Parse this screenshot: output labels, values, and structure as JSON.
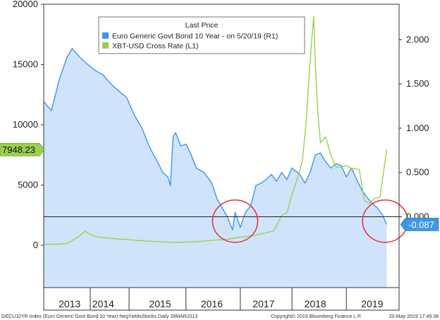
{
  "chart_data": {
    "type": "line",
    "legend": {
      "title": "Last Price",
      "placement": "top-center",
      "entries": [
        {
          "label": "Euro Generic Govt Bond 10 Year -  on 5/20/19  (R1)",
          "color": "#3c97e6"
        },
        {
          "label": "XBT-USD Cross Rate  (L1)",
          "color": "#9ad14d"
        }
      ]
    },
    "x_axis": {
      "range": [
        2012.75,
        2019.62
      ],
      "ticks": [
        "2013",
        "2014",
        "2015",
        "2016",
        "2017",
        "2018",
        "2019"
      ],
      "tick_positions": [
        2013.25,
        2013.9,
        2015.0,
        2016.0,
        2017.0,
        2018.0,
        2019.1
      ]
    },
    "y_left": {
      "range": [
        -3500,
        20000
      ],
      "tick_labels": [
        "20000",
        "15000",
        "10000",
        "5000",
        "0"
      ],
      "tick_values": [
        20000,
        15000,
        10000,
        5000,
        0
      ]
    },
    "y_right": {
      "range": [
        -0.8,
        2.4
      ],
      "tick_labels": [
        "2.000",
        "1.500",
        "1.000",
        "0.500",
        "0.000"
      ],
      "tick_values": [
        2.0,
        1.5,
        1.0,
        0.5,
        0.0
      ]
    },
    "last_value_tags": {
      "left": "7948.23",
      "right": "-0.087"
    },
    "series": [
      {
        "name": "Euro Generic Govt Bond 10 Year",
        "axis": "right",
        "color": "#3c97e6",
        "area_fill": "#cfe3fa",
        "points": [
          [
            2012.75,
            1.3
          ],
          [
            2012.9,
            1.2
          ],
          [
            2013.05,
            1.55
          ],
          [
            2013.2,
            1.8
          ],
          [
            2013.3,
            1.9
          ],
          [
            2013.45,
            1.8
          ],
          [
            2013.6,
            1.72
          ],
          [
            2013.75,
            1.65
          ],
          [
            2013.9,
            1.6
          ],
          [
            2014.05,
            1.5
          ],
          [
            2014.2,
            1.42
          ],
          [
            2014.35,
            1.35
          ],
          [
            2014.5,
            1.15
          ],
          [
            2014.65,
            1.0
          ],
          [
            2014.8,
            0.78
          ],
          [
            2014.95,
            0.62
          ],
          [
            2015.05,
            0.5
          ],
          [
            2015.15,
            0.45
          ],
          [
            2015.2,
            0.35
          ],
          [
            2015.25,
            0.9
          ],
          [
            2015.3,
            0.95
          ],
          [
            2015.4,
            0.8
          ],
          [
            2015.5,
            0.82
          ],
          [
            2015.6,
            0.7
          ],
          [
            2015.7,
            0.55
          ],
          [
            2015.85,
            0.5
          ],
          [
            2016.0,
            0.38
          ],
          [
            2016.1,
            0.2
          ],
          [
            2016.2,
            0.1
          ],
          [
            2016.3,
            0.0
          ],
          [
            2016.4,
            -0.15
          ],
          [
            2016.45,
            0.05
          ],
          [
            2016.55,
            -0.12
          ],
          [
            2016.65,
            0.05
          ],
          [
            2016.75,
            0.12
          ],
          [
            2016.85,
            0.35
          ],
          [
            2016.95,
            0.38
          ],
          [
            2017.05,
            0.42
          ],
          [
            2017.15,
            0.48
          ],
          [
            2017.25,
            0.4
          ],
          [
            2017.35,
            0.5
          ],
          [
            2017.45,
            0.42
          ],
          [
            2017.55,
            0.55
          ],
          [
            2017.7,
            0.48
          ],
          [
            2017.8,
            0.38
          ],
          [
            2017.9,
            0.5
          ],
          [
            2018.0,
            0.7
          ],
          [
            2018.1,
            0.72
          ],
          [
            2018.2,
            0.62
          ],
          [
            2018.3,
            0.55
          ],
          [
            2018.4,
            0.6
          ],
          [
            2018.5,
            0.58
          ],
          [
            2018.6,
            0.45
          ],
          [
            2018.7,
            0.55
          ],
          [
            2018.8,
            0.42
          ],
          [
            2018.9,
            0.3
          ],
          [
            2019.0,
            0.22
          ],
          [
            2019.1,
            0.15
          ],
          [
            2019.2,
            0.1
          ],
          [
            2019.3,
            0.02
          ],
          [
            2019.38,
            -0.087
          ]
        ]
      },
      {
        "name": "XBT-USD Cross Rate",
        "axis": "left",
        "color": "#9ad14d",
        "points": [
          [
            2012.75,
            100
          ],
          [
            2013.0,
            100
          ],
          [
            2013.2,
            150
          ],
          [
            2013.3,
            400
          ],
          [
            2013.45,
            800
          ],
          [
            2013.55,
            1200
          ],
          [
            2013.65,
            900
          ],
          [
            2013.8,
            700
          ],
          [
            2014.0,
            600
          ],
          [
            2014.3,
            500
          ],
          [
            2014.6,
            400
          ],
          [
            2014.9,
            320
          ],
          [
            2015.3,
            250
          ],
          [
            2015.7,
            300
          ],
          [
            2016.0,
            420
          ],
          [
            2016.3,
            500
          ],
          [
            2016.5,
            650
          ],
          [
            2016.6,
            700
          ],
          [
            2016.8,
            800
          ],
          [
            2017.0,
            1000
          ],
          [
            2017.2,
            1200
          ],
          [
            2017.35,
            2500
          ],
          [
            2017.45,
            2700
          ],
          [
            2017.55,
            4200
          ],
          [
            2017.65,
            5500
          ],
          [
            2017.75,
            7000
          ],
          [
            2017.82,
            10000
          ],
          [
            2017.88,
            14000
          ],
          [
            2017.93,
            17000
          ],
          [
            2017.97,
            19000
          ],
          [
            2018.0,
            15000
          ],
          [
            2018.05,
            11000
          ],
          [
            2018.1,
            8500
          ],
          [
            2018.2,
            9000
          ],
          [
            2018.3,
            7500
          ],
          [
            2018.4,
            6500
          ],
          [
            2018.5,
            6500
          ],
          [
            2018.6,
            6600
          ],
          [
            2018.7,
            6400
          ],
          [
            2018.85,
            6300
          ],
          [
            2018.95,
            3700
          ],
          [
            2019.05,
            3500
          ],
          [
            2019.15,
            3900
          ],
          [
            2019.25,
            4000
          ],
          [
            2019.3,
            5500
          ],
          [
            2019.35,
            7000
          ],
          [
            2019.38,
            7948.23
          ]
        ]
      }
    ],
    "annotations": [
      {
        "type": "circle",
        "label": "",
        "x": 2016.45,
        "y_right": -0.05,
        "color": "#e03040"
      },
      {
        "type": "circle",
        "label": "",
        "x": 2019.35,
        "y_right": -0.05,
        "color": "#e03040"
      }
    ],
    "footer": {
      "left": "GECU10YR Index (Euro Generic Govt Bond 10 Year) NegYieldsStocks  Daily 28MAR2013",
      "center": "Copyright© 2019 Bloomberg Finance L.P.",
      "right": "20-May-2019 17:49:38"
    }
  }
}
